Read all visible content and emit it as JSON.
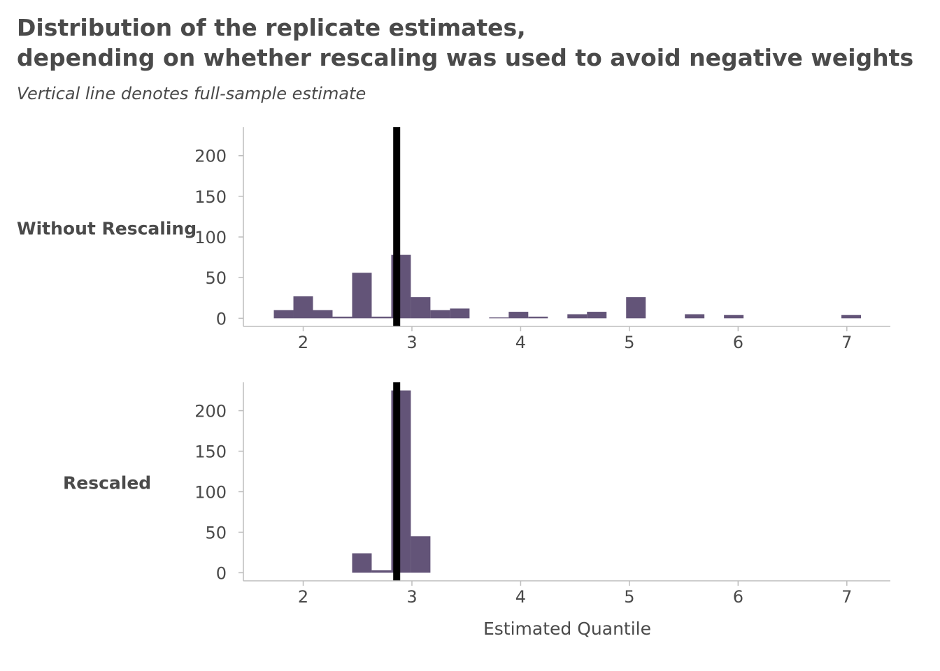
{
  "title_lines": [
    "Distribution of the replicate estimates,",
    "depending on whether rescaling was used to avoid negative weights"
  ],
  "subtitle": "Vertical line denotes full-sample estimate",
  "colors": {
    "bar": "#635478",
    "reference_line": "#000000",
    "axis": "#bdbdbd",
    "text": "#4a4a4a"
  },
  "chart_data": {
    "type": "bar",
    "subtype": "histogram-facets",
    "xlabel": "Estimated Quantile",
    "ylabel": "",
    "xlim": [
      1.45,
      7.4
    ],
    "ylim": [
      -10,
      235
    ],
    "xticks": [
      2,
      3,
      4,
      5,
      6,
      7
    ],
    "yticks": [
      0,
      50,
      100,
      150,
      200
    ],
    "bin_width": 0.18,
    "reference_line_x": 2.86,
    "grid": false,
    "legend": "none",
    "panels": [
      {
        "label": "Without Rescaling",
        "bins": [
          {
            "x": 1.82,
            "count": 10
          },
          {
            "x": 2.0,
            "count": 27
          },
          {
            "x": 2.18,
            "count": 10
          },
          {
            "x": 2.36,
            "count": 2
          },
          {
            "x": 2.54,
            "count": 56
          },
          {
            "x": 2.72,
            "count": 2
          },
          {
            "x": 2.9,
            "count": 78
          },
          {
            "x": 3.08,
            "count": 26
          },
          {
            "x": 3.26,
            "count": 10
          },
          {
            "x": 3.44,
            "count": 12
          },
          {
            "x": 3.8,
            "count": 1
          },
          {
            "x": 3.98,
            "count": 8
          },
          {
            "x": 4.16,
            "count": 2
          },
          {
            "x": 4.52,
            "count": 5
          },
          {
            "x": 4.7,
            "count": 8
          },
          {
            "x": 5.06,
            "count": 26
          },
          {
            "x": 5.6,
            "count": 5
          },
          {
            "x": 5.96,
            "count": 4
          },
          {
            "x": 7.04,
            "count": 4
          }
        ]
      },
      {
        "label": "Rescaled",
        "bins": [
          {
            "x": 2.54,
            "count": 24
          },
          {
            "x": 2.72,
            "count": 3
          },
          {
            "x": 2.9,
            "count": 225
          },
          {
            "x": 3.08,
            "count": 45
          }
        ]
      }
    ]
  }
}
